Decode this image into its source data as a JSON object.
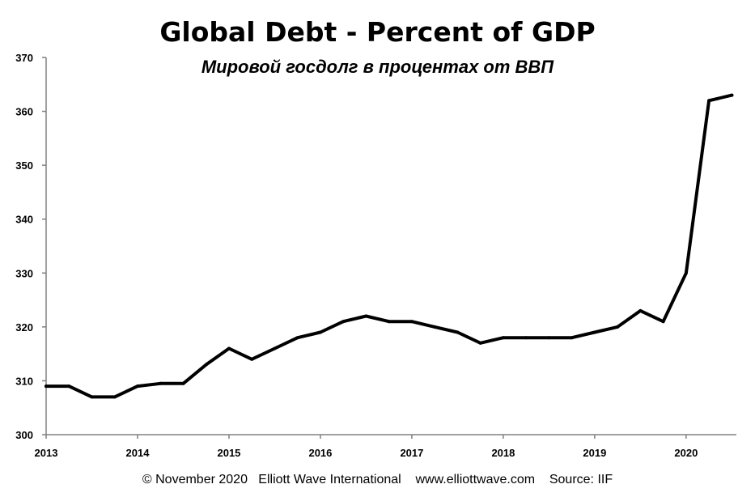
{
  "chart_data": {
    "type": "line",
    "title": "Global Debt - Percent of GDP",
    "subtitle": "Мировой госдолг в процентах от ВВП",
    "xlabel": "",
    "ylabel": "",
    "xlim": [
      2013,
      2020.55
    ],
    "ylim": [
      300,
      370
    ],
    "grid": false,
    "x_ticks": [
      2013,
      2014,
      2015,
      2016,
      2017,
      2018,
      2019,
      2020
    ],
    "x_tick_labels": [
      "2013",
      "2014",
      "2015",
      "2016",
      "2017",
      "2018",
      "2019",
      "2020"
    ],
    "y_ticks": [
      300,
      310,
      320,
      330,
      340,
      350,
      360,
      370
    ],
    "y_tick_labels": [
      "300",
      "310",
      "320",
      "330",
      "340",
      "350",
      "360",
      "370"
    ],
    "series": [
      {
        "name": "Global Debt % of GDP",
        "color": "#000000",
        "x": [
          2013.0,
          2013.25,
          2013.5,
          2013.75,
          2014.0,
          2014.25,
          2014.5,
          2014.75,
          2015.0,
          2015.25,
          2015.5,
          2015.75,
          2016.0,
          2016.25,
          2016.5,
          2016.75,
          2017.0,
          2017.25,
          2017.5,
          2017.75,
          2018.0,
          2018.25,
          2018.5,
          2018.75,
          2019.0,
          2019.25,
          2019.5,
          2019.75,
          2020.0,
          2020.25,
          2020.5
        ],
        "values": [
          309,
          309,
          307,
          307,
          309,
          309.5,
          309.5,
          313,
          316,
          314,
          316,
          318,
          319,
          321,
          322,
          321,
          321,
          320,
          319,
          317,
          318,
          318,
          318,
          318,
          319,
          320,
          323,
          321,
          330,
          362,
          363
        ]
      }
    ]
  },
  "footer": {
    "text": "© November 2020   Elliott Wave International    www.elliottwave.com    Source: IIF"
  }
}
